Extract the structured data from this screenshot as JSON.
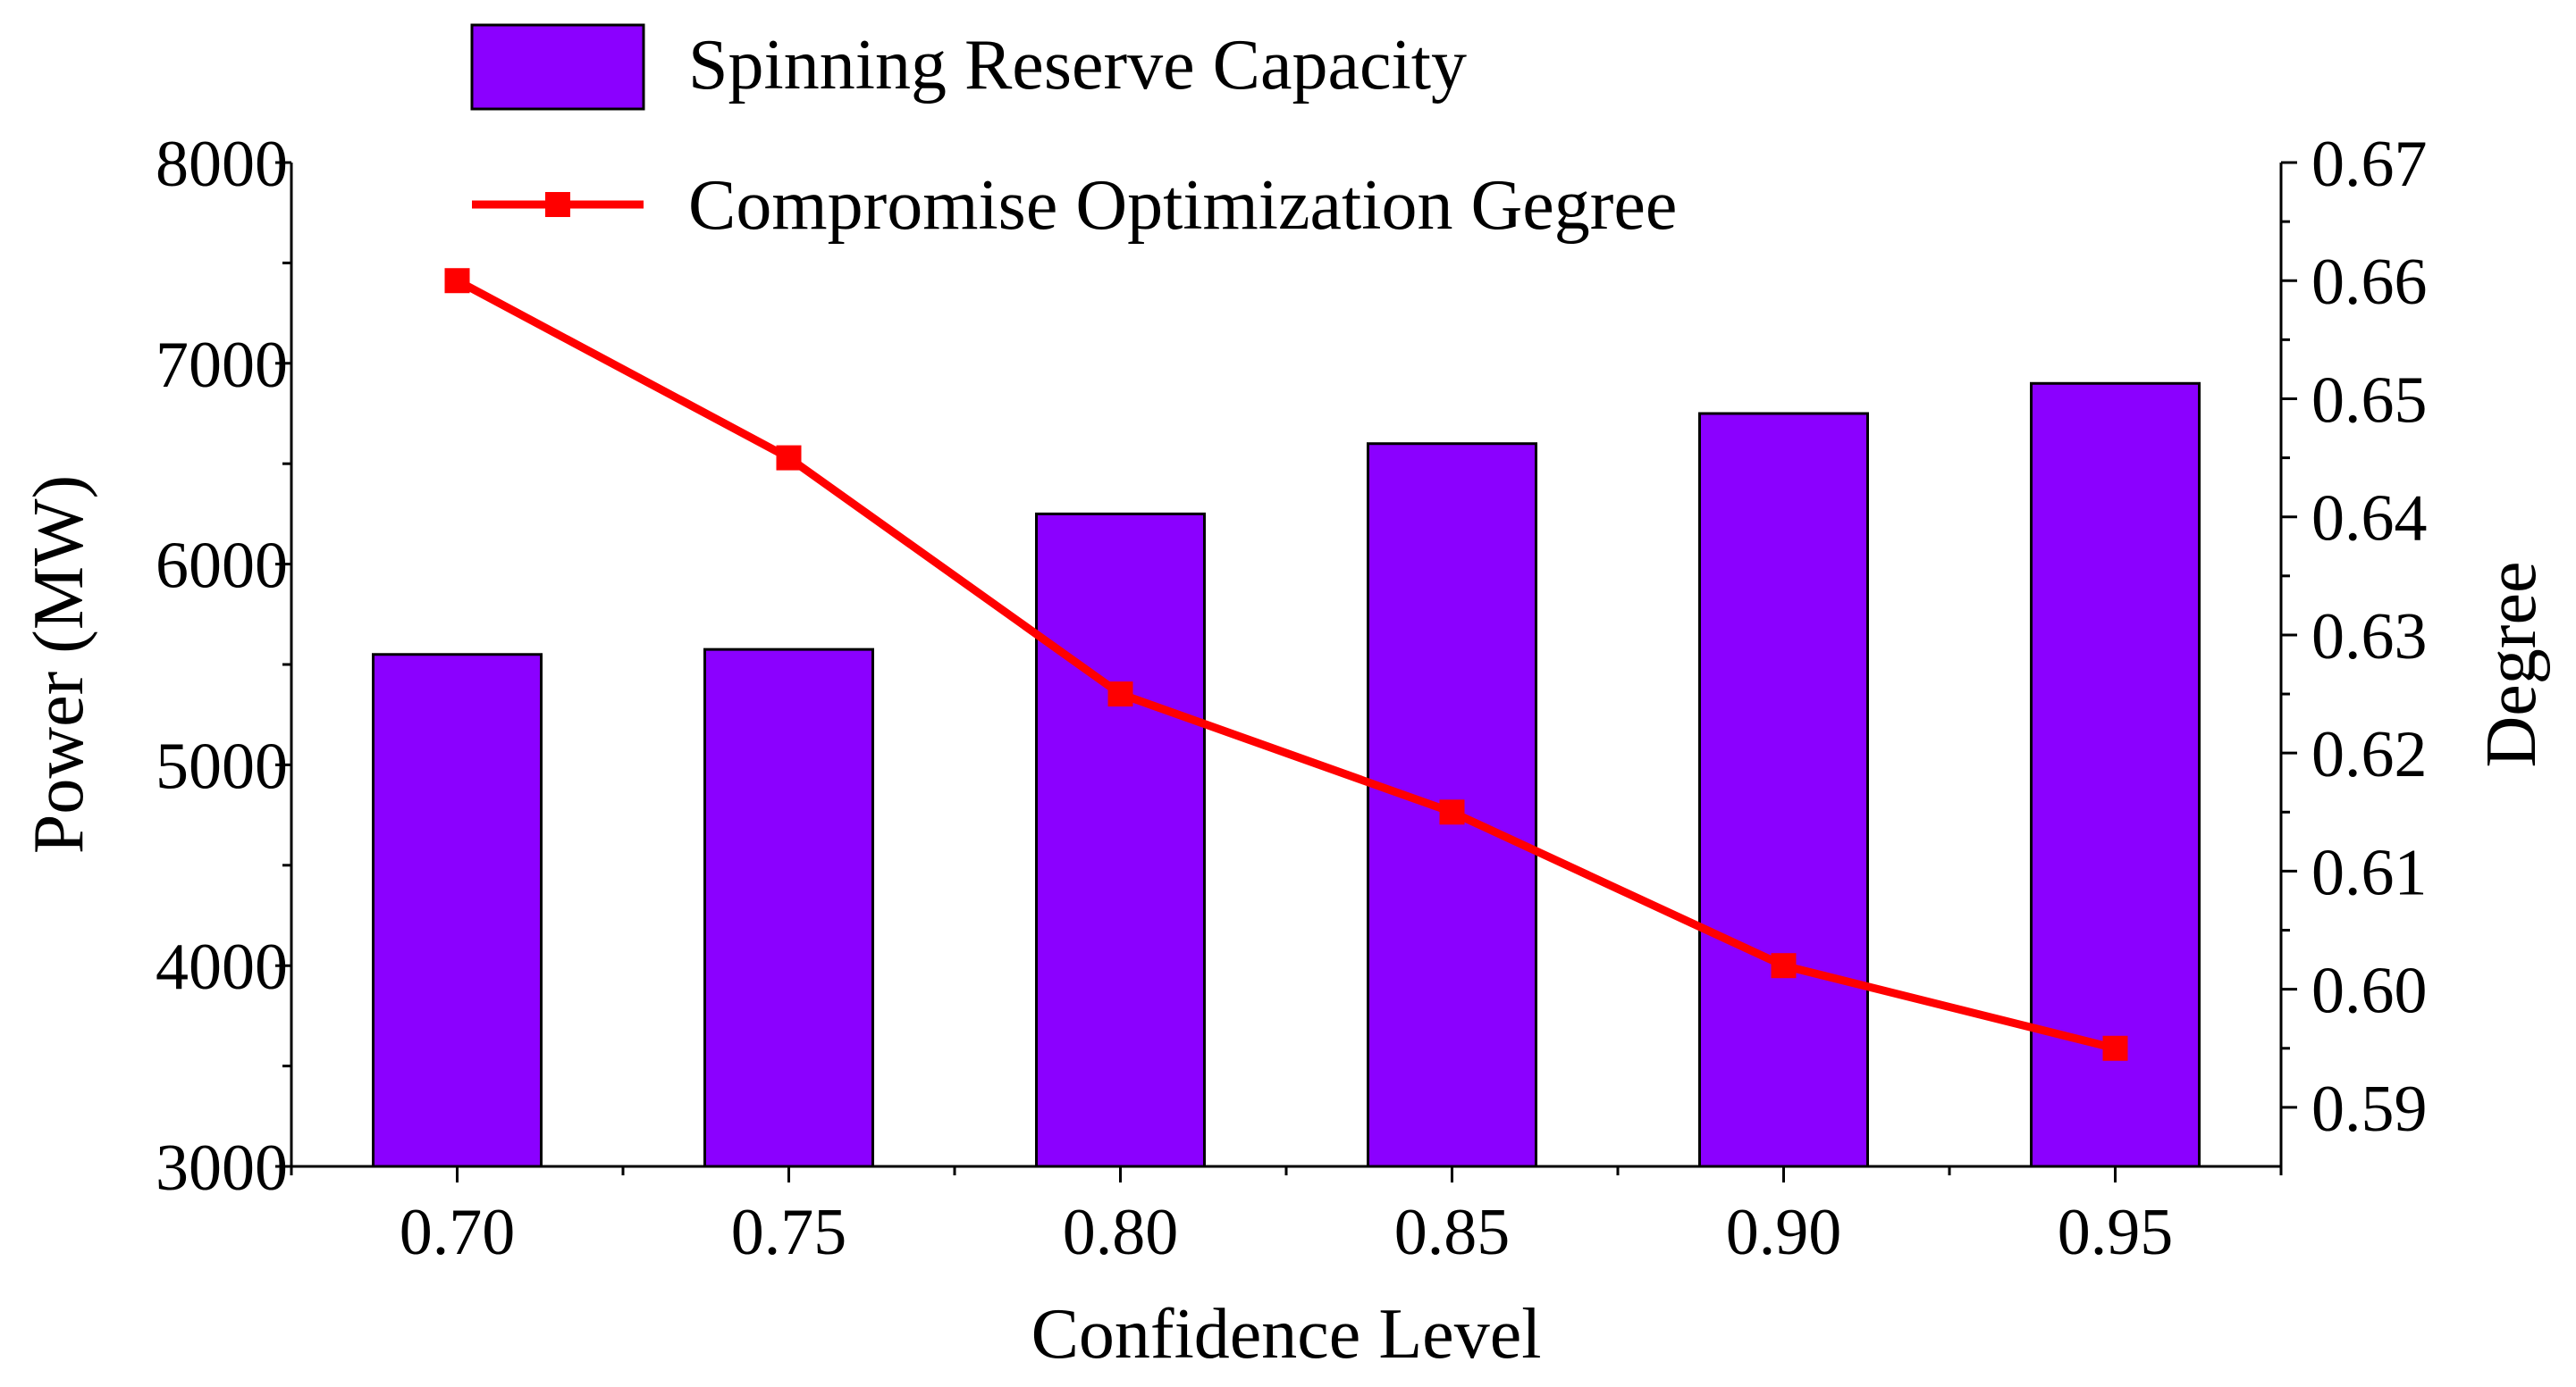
{
  "chart_data": {
    "type": "bar+line",
    "categories": [
      "0.70",
      "0.75",
      "0.80",
      "0.85",
      "0.90",
      "0.95"
    ],
    "series": [
      {
        "name": "Spinning Reserve Capacity",
        "type": "bar",
        "axis": "left",
        "values": [
          5550,
          5575,
          6250,
          6600,
          6750,
          6900
        ],
        "color": "#8B00FF"
      },
      {
        "name": "Compromise Optimization Gegree",
        "type": "line",
        "axis": "right",
        "marker": "square",
        "values": [
          0.66,
          0.645,
          0.625,
          0.615,
          0.602,
          0.595
        ],
        "color": "#FF0000"
      }
    ],
    "xlabel": "Confidence Level",
    "ylabel_left": "Power (MW)",
    "ylabel_right": "Degree",
    "ylim_left": [
      3000,
      8000
    ],
    "yticks_left": [
      "3000",
      "4000",
      "5000",
      "6000",
      "7000",
      "8000"
    ],
    "ylim_right": [
      0.585,
      0.67
    ],
    "yticks_right": [
      "0.59",
      "0.60",
      "0.61",
      "0.62",
      "0.63",
      "0.64",
      "0.65",
      "0.66",
      "0.67"
    ],
    "grid": false,
    "legend": "top-center"
  }
}
